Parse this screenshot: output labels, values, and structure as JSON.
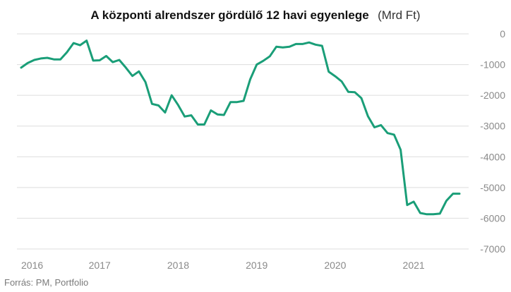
{
  "chart_data": {
    "type": "line",
    "title": "A központi alrendszer gördülő 12 havi egyenlege",
    "unit": "(Mrd Ft)",
    "source": "Forrás: PM, Portfolio",
    "xlabel": "",
    "ylabel": "",
    "xlim": [
      2016.0,
      2021.7
    ],
    "ylim": [
      -7000,
      0
    ],
    "yticks": [
      0,
      -1000,
      -2000,
      -3000,
      -4000,
      -5000,
      -6000,
      -7000
    ],
    "ytick_labels": [
      "0",
      "-1000",
      "-2000",
      "-3000",
      "-4000",
      "-5000",
      "-6000",
      "-7000"
    ],
    "xticks": [
      2016,
      2017,
      2018,
      2019,
      2020,
      2021
    ],
    "xtick_labels": [
      "2016",
      "2017",
      "2018",
      "2019",
      "2020",
      "2021"
    ],
    "grid": "horizontal",
    "y_axis_side": "right",
    "line_color": "#1a9e78",
    "grid_color": "#dddddd",
    "series": [
      {
        "x": [
          2016.0,
          2016.083,
          2016.167,
          2016.25,
          2016.333,
          2016.417,
          2016.5,
          2016.583,
          2016.667,
          2016.75,
          2016.833,
          2016.917,
          2017.0,
          2017.083,
          2017.167,
          2017.25,
          2017.333,
          2017.417,
          2017.5,
          2017.583,
          2017.667,
          2017.75,
          2017.833,
          2017.917,
          2018.0,
          2018.083,
          2018.167,
          2018.25,
          2018.333,
          2018.417,
          2018.5,
          2018.583,
          2018.667,
          2018.75,
          2018.833,
          2018.917,
          2019.0,
          2019.083,
          2019.167,
          2019.25,
          2019.333,
          2019.417,
          2019.5,
          2019.583,
          2019.667,
          2019.75,
          2019.833,
          2019.917,
          2020.0,
          2020.083,
          2020.167,
          2020.25,
          2020.333,
          2020.417,
          2020.5,
          2020.583,
          2020.667,
          2020.75,
          2020.833,
          2020.917,
          2021.0,
          2021.083,
          2021.167,
          2021.25,
          2021.333,
          2021.417,
          2021.5,
          2021.583
        ],
        "values": [
          -1100,
          -950,
          -850,
          -800,
          -780,
          -830,
          -830,
          -600,
          -300,
          -370,
          -220,
          -870,
          -860,
          -720,
          -920,
          -850,
          -1100,
          -1370,
          -1220,
          -1570,
          -2280,
          -2330,
          -2560,
          -2000,
          -2320,
          -2690,
          -2650,
          -2950,
          -2950,
          -2490,
          -2620,
          -2640,
          -2220,
          -2220,
          -2180,
          -1480,
          -1000,
          -880,
          -730,
          -420,
          -440,
          -420,
          -330,
          -330,
          -280,
          -350,
          -390,
          -1230,
          -1380,
          -1550,
          -1890,
          -1900,
          -2090,
          -2680,
          -3040,
          -2970,
          -3230,
          -3280,
          -3770,
          -5570,
          -5460,
          -5830,
          -5870,
          -5870,
          -5850,
          -5430,
          -5200,
          -5200
        ]
      }
    ]
  }
}
